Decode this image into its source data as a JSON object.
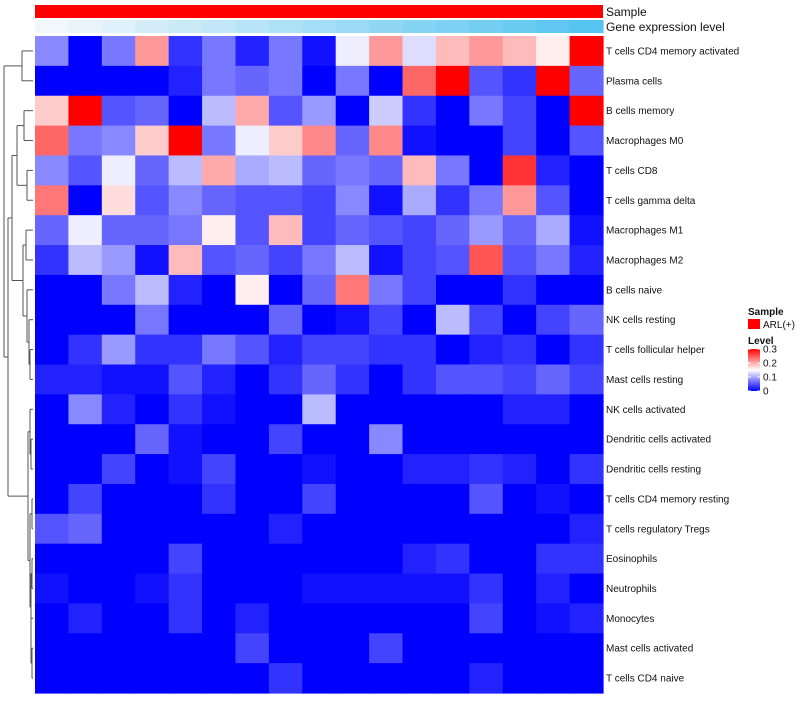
{
  "chart_data": {
    "type": "heatmap",
    "title": "",
    "rows": [
      "T cells CD4 memory activated",
      "Plasma cells",
      "B cells memory",
      "Macrophages M0",
      "T cells CD8",
      "T cells gamma delta",
      "Macrophages M1",
      "Macrophages M2",
      "B cells naive",
      "NK cells resting",
      "T cells follicular helper",
      "Mast cells resting",
      "NK cells activated",
      "Dendritic cells activated",
      "Dendritic cells resting",
      "T cells CD4 memory resting",
      "T cells regulatory  Tregs",
      "Eosinophils",
      "Neutrophils",
      "Monocytes",
      "Mast cells activated",
      "T cells CD4 naive"
    ],
    "values": [
      [
        0.08,
        0.0,
        0.07,
        0.21,
        0.03,
        0.07,
        0.02,
        0.07,
        0.01,
        0.14,
        0.21,
        0.13,
        0.19,
        0.21,
        0.19,
        0.16,
        0.3
      ],
      [
        0.0,
        0.0,
        0.0,
        0.0,
        0.02,
        0.07,
        0.06,
        0.07,
        0.0,
        0.07,
        0.0,
        0.24,
        0.3,
        0.05,
        0.03,
        0.3,
        0.06
      ],
      [
        0.18,
        0.3,
        0.05,
        0.06,
        0.0,
        0.11,
        0.2,
        0.05,
        0.09,
        0.0,
        0.12,
        0.03,
        0.0,
        0.07,
        0.04,
        0.0,
        0.3
      ],
      [
        0.24,
        0.07,
        0.08,
        0.18,
        0.3,
        0.07,
        0.14,
        0.18,
        0.22,
        0.06,
        0.22,
        0.01,
        0.0,
        0.0,
        0.04,
        0.0,
        0.05
      ],
      [
        0.08,
        0.05,
        0.14,
        0.06,
        0.11,
        0.2,
        0.1,
        0.11,
        0.06,
        0.07,
        0.06,
        0.19,
        0.07,
        0.0,
        0.27,
        0.02,
        0.0
      ],
      [
        0.23,
        0.0,
        0.17,
        0.05,
        0.08,
        0.06,
        0.05,
        0.05,
        0.04,
        0.08,
        0.01,
        0.1,
        0.03,
        0.07,
        0.21,
        0.05,
        0.0
      ],
      [
        0.06,
        0.14,
        0.06,
        0.06,
        0.07,
        0.16,
        0.05,
        0.19,
        0.04,
        0.06,
        0.05,
        0.04,
        0.06,
        0.09,
        0.06,
        0.1,
        0.01
      ],
      [
        0.03,
        0.11,
        0.09,
        0.01,
        0.19,
        0.05,
        0.06,
        0.04,
        0.07,
        0.11,
        0.01,
        0.04,
        0.05,
        0.25,
        0.05,
        0.07,
        0.02
      ],
      [
        0.0,
        0.0,
        0.07,
        0.11,
        0.02,
        0.0,
        0.16,
        0.0,
        0.06,
        0.23,
        0.07,
        0.04,
        0.0,
        0.0,
        0.03,
        0.0,
        0.0
      ],
      [
        0.0,
        0.0,
        0.0,
        0.07,
        0.0,
        0.0,
        0.0,
        0.06,
        0.0,
        0.01,
        0.04,
        0.0,
        0.11,
        0.04,
        0.0,
        0.04,
        0.06
      ],
      [
        0.0,
        0.03,
        0.09,
        0.03,
        0.03,
        0.07,
        0.05,
        0.02,
        0.04,
        0.04,
        0.03,
        0.03,
        0.0,
        0.02,
        0.03,
        0.0,
        0.03
      ],
      [
        0.02,
        0.02,
        0.01,
        0.01,
        0.05,
        0.02,
        0.0,
        0.03,
        0.06,
        0.03,
        0.0,
        0.03,
        0.05,
        0.05,
        0.04,
        0.06,
        0.04
      ],
      [
        0.0,
        0.08,
        0.02,
        0.0,
        0.03,
        0.01,
        0.0,
        0.0,
        0.11,
        0.0,
        0.0,
        0.0,
        0.0,
        0.0,
        0.02,
        0.02,
        0.0
      ],
      [
        0.0,
        0.0,
        0.0,
        0.06,
        0.01,
        0.0,
        0.0,
        0.04,
        0.0,
        0.0,
        0.08,
        0.0,
        0.0,
        0.0,
        0.0,
        0.0,
        0.0
      ],
      [
        0.0,
        0.0,
        0.04,
        0.0,
        0.01,
        0.04,
        0.0,
        0.0,
        0.01,
        0.0,
        0.0,
        0.02,
        0.02,
        0.03,
        0.02,
        0.0,
        0.03
      ],
      [
        0.0,
        0.04,
        0.0,
        0.0,
        0.0,
        0.03,
        0.0,
        0.0,
        0.04,
        0.0,
        0.0,
        0.0,
        0.0,
        0.05,
        0.0,
        0.01,
        0.0
      ],
      [
        0.05,
        0.06,
        0.0,
        0.0,
        0.0,
        0.0,
        0.0,
        0.02,
        0.0,
        0.0,
        0.0,
        0.0,
        0.0,
        0.0,
        0.0,
        0.0,
        0.02
      ],
      [
        0.0,
        0.0,
        0.0,
        0.0,
        0.04,
        0.0,
        0.0,
        0.0,
        0.0,
        0.0,
        0.0,
        0.02,
        0.03,
        0.0,
        0.0,
        0.03,
        0.03
      ],
      [
        0.01,
        0.0,
        0.0,
        0.01,
        0.03,
        0.0,
        0.0,
        0.0,
        0.01,
        0.01,
        0.01,
        0.01,
        0.01,
        0.03,
        0.0,
        0.02,
        0.0
      ],
      [
        0.0,
        0.02,
        0.0,
        0.0,
        0.03,
        0.0,
        0.02,
        0.0,
        0.0,
        0.0,
        0.0,
        0.0,
        0.0,
        0.04,
        0.0,
        0.01,
        0.02
      ],
      [
        0.0,
        0.0,
        0.0,
        0.0,
        0.0,
        0.0,
        0.04,
        0.0,
        0.0,
        0.0,
        0.04,
        0.0,
        0.0,
        0.0,
        0.0,
        0.0,
        0.0
      ],
      [
        0.0,
        0.0,
        0.0,
        0.0,
        0.0,
        0.0,
        0.0,
        0.03,
        0.0,
        0.0,
        0.0,
        0.0,
        0.0,
        0.02,
        0.0,
        0.0,
        0.0
      ]
    ],
    "annotations": {
      "sample": {
        "label": "Sample",
        "color": "#ff0000"
      },
      "gene_expression": {
        "label": "Gene expression level",
        "values": [
          0.0,
          0.06,
          0.12,
          0.19,
          0.25,
          0.31,
          0.37,
          0.44,
          0.5,
          0.56,
          0.62,
          0.69,
          0.75,
          0.81,
          0.87,
          0.94,
          1.0
        ],
        "low_color": "#f2f7fb",
        "high_color": "#56c4f0"
      }
    },
    "legend": {
      "sample_title": "Sample",
      "sample_entry": "ARL(+)",
      "level_title": "Level",
      "level_ticks": [
        {
          "value": 0.3,
          "label": "0.3"
        },
        {
          "value": 0.2,
          "label": "0.2"
        },
        {
          "value": 0.1,
          "label": "0.1"
        },
        {
          "value": 0.0,
          "label": "0"
        }
      ],
      "range": [
        0,
        0.3
      ],
      "placement": "right"
    },
    "colorscale": {
      "low": "#0000ff",
      "mid": "#ffffff",
      "high": "#ff0000",
      "midpoint": 0.15
    }
  }
}
